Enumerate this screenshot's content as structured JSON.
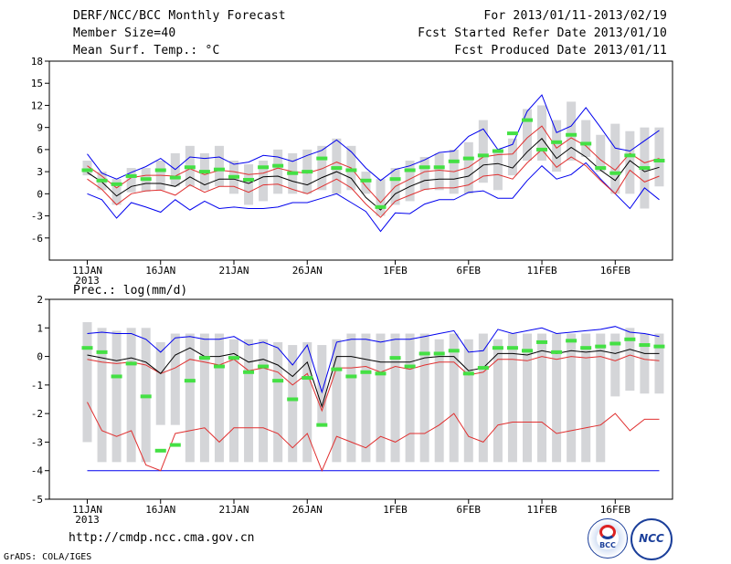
{
  "header": {
    "title": "DERF/NCC/BCC Monthly Forecast",
    "member_size": "Member Size=40",
    "variable": "Mean Surf. Temp.: °C",
    "period": "For 2013/01/11-2013/02/19",
    "fcst_started": "Fcst Started Refer Date 2013/01/10",
    "fcst_produced": "Fcst Produced Date 2013/01/11"
  },
  "precip_label": "Prec.: log(mm/d)",
  "footer": {
    "url": "http://cmdp.ncc.cma.gov.cn",
    "grads": "GrADS: COLA/IGES",
    "logo_bcc": "BCC",
    "logo_ncc": "NCC"
  },
  "colors": {
    "box": "#d4d5d8",
    "obs": "#44e044",
    "mean": "#000000",
    "p": "#e03030",
    "ext": "#0000ee"
  },
  "chart_data": [
    {
      "type": "box-ensemble",
      "title": "Mean Surf. Temp.: °C",
      "x_ticks": [
        {
          "day": 1,
          "label": "11JAN",
          "sub": "2013"
        },
        {
          "day": 6,
          "label": "16JAN"
        },
        {
          "day": 11,
          "label": "21JAN"
        },
        {
          "day": 16,
          "label": "26JAN"
        },
        {
          "day": 22,
          "label": "1FEB"
        },
        {
          "day": 27,
          "label": "6FEB"
        },
        {
          "day": 32,
          "label": "11FEB"
        },
        {
          "day": 37,
          "label": "16FEB"
        }
      ],
      "ylim": [
        -9,
        18
      ],
      "y_ticks": [
        -6,
        -3,
        0,
        3,
        6,
        9,
        12,
        15,
        18
      ],
      "box_low": [
        2.5,
        0.5,
        -1.5,
        0.2,
        0.3,
        0.5,
        1.0,
        1.0,
        0.5,
        1.0,
        0.0,
        -1.5,
        -1.0,
        0.0,
        0.0,
        0.0,
        0.5,
        0.0,
        0.5,
        0.0,
        -3.0,
        -1.5,
        -1.0,
        0.5,
        0.5,
        0.0,
        0.0,
        1.5,
        0.5,
        2.5,
        4.5,
        4.5,
        3.0,
        4.5,
        5.0,
        3.0,
        0.0,
        0.0,
        -2.0,
        1.0
      ],
      "box_high": [
        4.5,
        3.0,
        2.0,
        3.5,
        3.5,
        4.5,
        5.5,
        6.5,
        5.5,
        6.5,
        4.5,
        4.0,
        4.5,
        6.0,
        5.5,
        6.0,
        6.5,
        7.5,
        6.5,
        3.0,
        2.0,
        3.5,
        4.5,
        5.0,
        5.5,
        6.0,
        7.0,
        10.0,
        6.0,
        7.5,
        11.5,
        12.0,
        10.0,
        12.5,
        10.0,
        8.0,
        9.5,
        8.5,
        9.0,
        9.0
      ],
      "obs": [
        3.2,
        1.8,
        1.3,
        2.4,
        2.0,
        3.2,
        2.2,
        3.6,
        3.0,
        3.3,
        2.3,
        1.9,
        3.6,
        3.8,
        2.8,
        3.0,
        4.8,
        3.5,
        3.2,
        1.8,
        -1.8,
        2.0,
        3.2,
        3.6,
        3.6,
        4.4,
        4.8,
        5.2,
        5.8,
        8.2,
        10.0,
        6.0,
        7.0,
        8.0,
        6.8,
        3.5,
        2.8,
        5.2,
        3.5,
        4.5
      ],
      "mean": [
        2.9,
        1.6,
        -0.3,
        1.0,
        1.4,
        1.4,
        1.0,
        2.3,
        1.2,
        2.0,
        2.0,
        1.4,
        2.3,
        2.4,
        1.7,
        1.2,
        2.2,
        3.0,
        2.1,
        -0.5,
        -2.2,
        0.0,
        1.0,
        1.8,
        2.0,
        2.0,
        2.4,
        3.9,
        4.1,
        3.5,
        5.7,
        7.5,
        4.8,
        6.3,
        5.0,
        3.2,
        1.8,
        4.5,
        3.0,
        3.6
      ],
      "upper": [
        3.8,
        2.4,
        0.8,
        2.2,
        2.5,
        2.5,
        2.4,
        3.4,
        2.6,
        3.2,
        3.0,
        2.6,
        2.8,
        3.5,
        3.0,
        2.8,
        3.4,
        4.3,
        3.5,
        1.0,
        -1.2,
        1.0,
        2.0,
        3.0,
        3.2,
        3.0,
        3.6,
        5.0,
        5.3,
        5.4,
        7.6,
        9.2,
        6.2,
        7.6,
        6.5,
        4.6,
        3.2,
        5.5,
        4.2,
        4.8
      ],
      "lower": [
        2.0,
        0.6,
        -1.5,
        0.0,
        0.4,
        0.5,
        -0.2,
        1.2,
        0.2,
        1.0,
        1.0,
        0.2,
        1.2,
        1.3,
        0.6,
        0.0,
        1.0,
        2.0,
        0.8,
        -1.4,
        -3.2,
        -1.0,
        -0.2,
        0.6,
        0.8,
        0.8,
        1.2,
        2.4,
        2.6,
        2.0,
        4.2,
        6.0,
        3.6,
        5.0,
        3.8,
        1.8,
        0.0,
        3.2,
        1.6,
        2.4
      ],
      "max": [
        5.4,
        2.8,
        2.0,
        2.9,
        3.7,
        4.8,
        3.3,
        5.0,
        4.8,
        5.0,
        4.0,
        4.3,
        5.2,
        5.0,
        4.4,
        5.2,
        5.9,
        7.3,
        5.7,
        3.5,
        1.8,
        3.3,
        3.8,
        4.6,
        5.6,
        5.8,
        7.8,
        8.8,
        6.0,
        6.7,
        11.2,
        13.4,
        8.3,
        9.2,
        11.7,
        9.0,
        6.2,
        5.8,
        7.2,
        8.6
      ],
      "min": [
        0.0,
        -0.8,
        -3.3,
        -1.2,
        -1.8,
        -2.5,
        -0.8,
        -2.2,
        -1.0,
        -2.0,
        -1.8,
        -2.0,
        -2.0,
        -1.8,
        -1.2,
        -1.2,
        -0.6,
        0.0,
        -1.2,
        -2.4,
        -5.1,
        -2.6,
        -2.7,
        -1.4,
        -0.8,
        -0.8,
        0.2,
        0.4,
        -0.6,
        -0.6,
        1.8,
        3.8,
        2.0,
        2.6,
        4.2,
        2.0,
        0.0,
        -2.0,
        0.8,
        -0.8
      ]
    },
    {
      "type": "box-ensemble",
      "title": "Prec.: log(mm/d)",
      "x_ticks": [
        {
          "day": 1,
          "label": "11JAN",
          "sub": "2013"
        },
        {
          "day": 6,
          "label": "16JAN"
        },
        {
          "day": 11,
          "label": "21JAN"
        },
        {
          "day": 16,
          "label": "26JAN"
        },
        {
          "day": 22,
          "label": "1FEB"
        },
        {
          "day": 27,
          "label": "6FEB"
        },
        {
          "day": 32,
          "label": "11FEB"
        },
        {
          "day": 37,
          "label": "16FEB"
        }
      ],
      "ylim": [
        -5,
        2
      ],
      "y_ticks": [
        -5,
        -4,
        -3,
        -2,
        -1,
        0,
        1,
        2
      ],
      "box_low": [
        -3.0,
        -3.7,
        -3.7,
        -3.7,
        -3.7,
        -2.4,
        -2.4,
        -3.7,
        -3.7,
        -3.7,
        -3.7,
        -3.7,
        -3.7,
        -3.7,
        -3.7,
        -3.7,
        -2.4,
        -3.7,
        -3.7,
        -3.7,
        -3.7,
        -3.7,
        -3.7,
        -3.7,
        -3.7,
        -3.7,
        -3.7,
        -3.7,
        -3.7,
        -3.7,
        -3.7,
        -3.7,
        -3.7,
        -3.7,
        -3.7,
        -3.7,
        -1.4,
        -1.2,
        -1.3,
        -1.3
      ],
      "box_high": [
        1.2,
        1.0,
        0.9,
        1.0,
        1.0,
        0.5,
        0.8,
        0.8,
        0.8,
        0.8,
        0.6,
        0.6,
        0.6,
        0.5,
        0.4,
        0.5,
        0.4,
        0.6,
        0.8,
        0.8,
        0.8,
        0.8,
        0.8,
        0.8,
        0.6,
        0.8,
        0.6,
        0.8,
        0.6,
        0.8,
        0.8,
        0.8,
        0.8,
        0.8,
        0.8,
        0.8,
        0.8,
        1.0,
        0.8,
        0.8
      ],
      "obs": [
        0.3,
        0.15,
        -0.7,
        -0.25,
        -1.4,
        -3.3,
        -3.1,
        -0.85,
        -0.05,
        -0.35,
        -0.05,
        -0.55,
        -0.35,
        -0.85,
        -1.5,
        -0.75,
        -2.4,
        -0.45,
        -0.7,
        -0.55,
        -0.6,
        -0.05,
        -0.35,
        0.1,
        0.1,
        0.2,
        -0.6,
        -0.4,
        0.3,
        0.3,
        0.2,
        0.5,
        0.15,
        0.55,
        0.3,
        0.35,
        0.45,
        0.6,
        0.4,
        0.35
      ],
      "mean": [
        0.05,
        -0.05,
        -0.15,
        -0.05,
        -0.2,
        -0.6,
        0.05,
        0.3,
        0.0,
        0.0,
        0.1,
        -0.2,
        -0.1,
        -0.3,
        -0.7,
        -0.2,
        -1.75,
        0.0,
        0.0,
        -0.1,
        -0.2,
        -0.2,
        -0.2,
        -0.05,
        0.0,
        0.0,
        -0.5,
        -0.4,
        0.1,
        0.1,
        0.05,
        0.2,
        0.1,
        0.2,
        0.15,
        0.2,
        0.1,
        0.25,
        0.1,
        0.1
      ],
      "upper": [
        -0.1,
        -0.2,
        -0.25,
        -0.2,
        -0.3,
        -0.6,
        -0.4,
        -0.1,
        -0.2,
        -0.3,
        -0.1,
        -0.5,
        -0.4,
        -0.55,
        -1.0,
        -0.6,
        -1.9,
        -0.4,
        -0.4,
        -0.35,
        -0.55,
        -0.35,
        -0.45,
        -0.3,
        -0.2,
        -0.2,
        -0.65,
        -0.55,
        -0.1,
        -0.1,
        -0.15,
        0.0,
        -0.1,
        0.0,
        -0.05,
        0.0,
        -0.15,
        0.05,
        -0.1,
        -0.15
      ],
      "lower": [
        -1.6,
        -2.6,
        -2.8,
        -2.6,
        -3.8,
        -4.0,
        -2.7,
        -2.6,
        -2.5,
        -3.0,
        -2.5,
        -2.5,
        -2.5,
        -2.7,
        -3.2,
        -2.7,
        -4.0,
        -2.8,
        -3.0,
        -3.2,
        -2.8,
        -3.0,
        -2.7,
        -2.7,
        -2.4,
        -2.0,
        -2.8,
        -3.0,
        -2.4,
        -2.3,
        -2.3,
        -2.3,
        -2.7,
        -2.6,
        -2.5,
        -2.4,
        -2.0,
        -2.6,
        -2.2,
        -2.2
      ],
      "max": [
        0.8,
        0.85,
        0.8,
        0.8,
        0.6,
        0.15,
        0.65,
        0.7,
        0.6,
        0.6,
        0.7,
        0.4,
        0.5,
        0.3,
        -0.3,
        0.4,
        -1.25,
        0.5,
        0.6,
        0.6,
        0.5,
        0.6,
        0.6,
        0.7,
        0.8,
        0.9,
        0.15,
        0.2,
        0.95,
        0.8,
        0.9,
        1.0,
        0.8,
        0.85,
        0.9,
        0.95,
        1.05,
        0.85,
        0.8,
        0.7
      ],
      "min": [
        -4.0,
        -4.0,
        -4.0,
        -4.0,
        -4.0,
        -4.0,
        -4.0,
        -4.0,
        -4.0,
        -4.0,
        -4.0,
        -4.0,
        -4.0,
        -4.0,
        -4.0,
        -4.0,
        -4.0,
        -4.0,
        -4.0,
        -4.0,
        -4.0,
        -4.0,
        -4.0,
        -4.0,
        -4.0,
        -4.0,
        -4.0,
        -4.0,
        -4.0,
        -4.0,
        -4.0,
        -4.0,
        -4.0,
        -4.0,
        -4.0,
        -4.0,
        -4.0,
        -4.0,
        -4.0,
        -4.0
      ]
    }
  ]
}
